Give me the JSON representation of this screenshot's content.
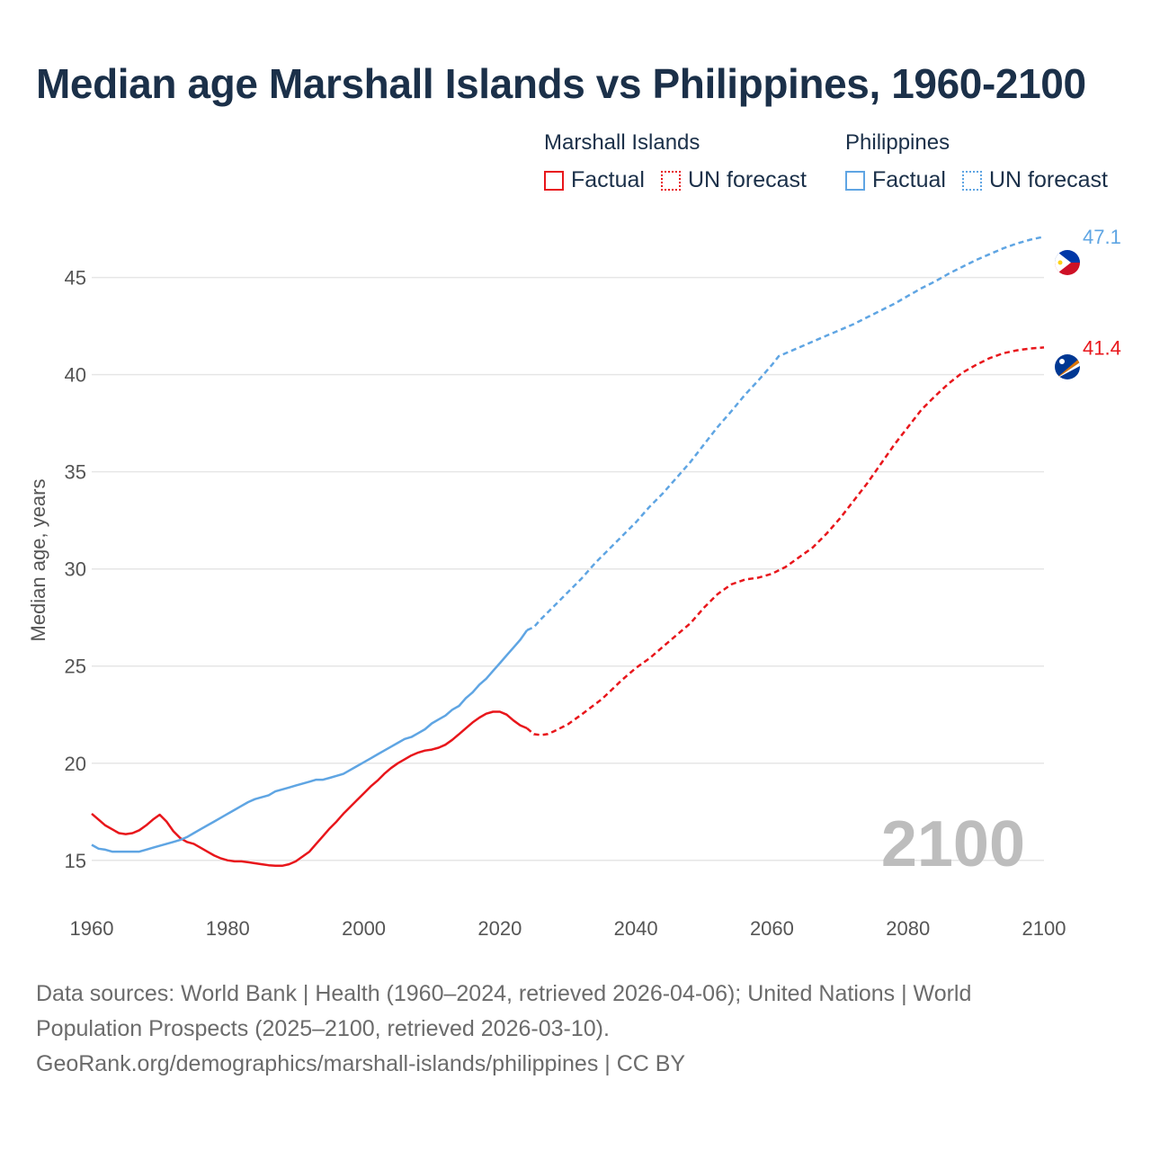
{
  "chart_data": {
    "type": "line",
    "title": "Median age Marshall Islands vs Philippines, 1960-2100",
    "ylabel": "Median age, years",
    "xlabel": "",
    "xlim": [
      1960,
      2100
    ],
    "ylim": [
      13,
      48.5
    ],
    "x_ticks": [
      1960,
      1980,
      2000,
      2020,
      2040,
      2060,
      2080,
      2100
    ],
    "y_ticks": [
      15,
      20,
      25,
      30,
      35,
      40,
      45
    ],
    "current_year_label": "2100",
    "legend": {
      "groups": [
        {
          "name": "Marshall Islands",
          "factual": "Factual",
          "forecast": "UN forecast",
          "color": "#e8161b"
        },
        {
          "name": "Philippines",
          "factual": "Factual",
          "forecast": "UN forecast",
          "color": "#5fa5e3"
        }
      ]
    },
    "series": [
      {
        "name": "Marshall Islands",
        "color": "#e8161b",
        "end_label": "41.4",
        "icon": "marshall-islands-flag-icon",
        "factual_points": [
          [
            1960,
            17.4
          ],
          [
            1961,
            17.1
          ],
          [
            1962,
            16.8
          ],
          [
            1963,
            16.6
          ],
          [
            1964,
            16.4
          ],
          [
            1965,
            16.35
          ],
          [
            1966,
            16.4
          ],
          [
            1967,
            16.55
          ],
          [
            1968,
            16.8
          ],
          [
            1969,
            17.1
          ],
          [
            1970,
            17.35
          ],
          [
            1971,
            17.0
          ],
          [
            1972,
            16.5
          ],
          [
            1973,
            16.15
          ],
          [
            1974,
            15.95
          ],
          [
            1975,
            15.85
          ],
          [
            1976,
            15.65
          ],
          [
            1977,
            15.45
          ],
          [
            1978,
            15.25
          ],
          [
            1979,
            15.1
          ],
          [
            1980,
            15.0
          ],
          [
            1981,
            14.95
          ],
          [
            1982,
            14.95
          ],
          [
            1983,
            14.9
          ],
          [
            1984,
            14.85
          ],
          [
            1985,
            14.8
          ],
          [
            1986,
            14.75
          ],
          [
            1987,
            14.72
          ],
          [
            1988,
            14.72
          ],
          [
            1989,
            14.8
          ],
          [
            1990,
            14.95
          ],
          [
            1991,
            15.2
          ],
          [
            1992,
            15.45
          ],
          [
            1993,
            15.85
          ],
          [
            1994,
            16.25
          ],
          [
            1995,
            16.65
          ],
          [
            1996,
            17.0
          ],
          [
            1997,
            17.4
          ],
          [
            1998,
            17.75
          ],
          [
            1999,
            18.1
          ],
          [
            2000,
            18.45
          ],
          [
            2001,
            18.8
          ],
          [
            2002,
            19.1
          ],
          [
            2003,
            19.45
          ],
          [
            2004,
            19.75
          ],
          [
            2005,
            20.0
          ],
          [
            2006,
            20.2
          ],
          [
            2007,
            20.4
          ],
          [
            2008,
            20.55
          ],
          [
            2009,
            20.65
          ],
          [
            2010,
            20.7
          ],
          [
            2011,
            20.8
          ],
          [
            2012,
            20.95
          ],
          [
            2013,
            21.2
          ],
          [
            2014,
            21.5
          ],
          [
            2015,
            21.8
          ],
          [
            2016,
            22.1
          ],
          [
            2017,
            22.35
          ],
          [
            2018,
            22.55
          ],
          [
            2019,
            22.65
          ],
          [
            2020,
            22.65
          ],
          [
            2021,
            22.5
          ],
          [
            2022,
            22.2
          ],
          [
            2023,
            21.95
          ],
          [
            2024,
            21.8
          ]
        ],
        "forecast_points": [
          [
            2024,
            21.8
          ],
          [
            2025,
            21.5
          ],
          [
            2026,
            21.45
          ],
          [
            2027,
            21.5
          ],
          [
            2028,
            21.65
          ],
          [
            2030,
            22.0
          ],
          [
            2032,
            22.5
          ],
          [
            2035,
            23.3
          ],
          [
            2038,
            24.3
          ],
          [
            2040,
            24.9
          ],
          [
            2042,
            25.4
          ],
          [
            2045,
            26.3
          ],
          [
            2048,
            27.2
          ],
          [
            2050,
            28.0
          ],
          [
            2052,
            28.7
          ],
          [
            2054,
            29.2
          ],
          [
            2056,
            29.45
          ],
          [
            2058,
            29.55
          ],
          [
            2060,
            29.75
          ],
          [
            2062,
            30.1
          ],
          [
            2064,
            30.6
          ],
          [
            2066,
            31.1
          ],
          [
            2068,
            31.8
          ],
          [
            2070,
            32.6
          ],
          [
            2072,
            33.5
          ],
          [
            2074,
            34.4
          ],
          [
            2076,
            35.4
          ],
          [
            2078,
            36.4
          ],
          [
            2080,
            37.3
          ],
          [
            2082,
            38.2
          ],
          [
            2084,
            38.9
          ],
          [
            2086,
            39.55
          ],
          [
            2088,
            40.1
          ],
          [
            2090,
            40.5
          ],
          [
            2092,
            40.85
          ],
          [
            2094,
            41.1
          ],
          [
            2096,
            41.25
          ],
          [
            2098,
            41.35
          ],
          [
            2100,
            41.4
          ]
        ]
      },
      {
        "name": "Philippines",
        "color": "#5fa5e3",
        "end_label": "47.1",
        "icon": "philippines-flag-icon",
        "factual_points": [
          [
            1960,
            15.8
          ],
          [
            1961,
            15.6
          ],
          [
            1962,
            15.55
          ],
          [
            1963,
            15.45
          ],
          [
            1964,
            15.45
          ],
          [
            1965,
            15.45
          ],
          [
            1966,
            15.45
          ],
          [
            1967,
            15.45
          ],
          [
            1968,
            15.55
          ],
          [
            1969,
            15.65
          ],
          [
            1970,
            15.75
          ],
          [
            1971,
            15.85
          ],
          [
            1972,
            15.95
          ],
          [
            1973,
            16.05
          ],
          [
            1974,
            16.2
          ],
          [
            1975,
            16.4
          ],
          [
            1976,
            16.6
          ],
          [
            1977,
            16.8
          ],
          [
            1978,
            17.0
          ],
          [
            1979,
            17.2
          ],
          [
            1980,
            17.4
          ],
          [
            1981,
            17.6
          ],
          [
            1982,
            17.8
          ],
          [
            1983,
            18.0
          ],
          [
            1984,
            18.15
          ],
          [
            1985,
            18.25
          ],
          [
            1986,
            18.35
          ],
          [
            1987,
            18.55
          ],
          [
            1988,
            18.65
          ],
          [
            1989,
            18.75
          ],
          [
            1990,
            18.85
          ],
          [
            1991,
            18.95
          ],
          [
            1992,
            19.05
          ],
          [
            1993,
            19.15
          ],
          [
            1994,
            19.15
          ],
          [
            1995,
            19.25
          ],
          [
            1996,
            19.35
          ],
          [
            1997,
            19.45
          ],
          [
            1998,
            19.65
          ],
          [
            1999,
            19.85
          ],
          [
            2000,
            20.05
          ],
          [
            2001,
            20.25
          ],
          [
            2002,
            20.45
          ],
          [
            2003,
            20.65
          ],
          [
            2004,
            20.85
          ],
          [
            2005,
            21.05
          ],
          [
            2006,
            21.25
          ],
          [
            2007,
            21.35
          ],
          [
            2008,
            21.55
          ],
          [
            2009,
            21.75
          ],
          [
            2010,
            22.05
          ],
          [
            2011,
            22.25
          ],
          [
            2012,
            22.45
          ],
          [
            2013,
            22.75
          ],
          [
            2014,
            22.95
          ],
          [
            2015,
            23.35
          ],
          [
            2016,
            23.65
          ],
          [
            2017,
            24.05
          ],
          [
            2018,
            24.35
          ],
          [
            2019,
            24.75
          ],
          [
            2020,
            25.15
          ],
          [
            2021,
            25.55
          ],
          [
            2022,
            25.95
          ],
          [
            2023,
            26.35
          ],
          [
            2024,
            26.85
          ]
        ],
        "forecast_points": [
          [
            2024,
            26.85
          ],
          [
            2025,
            27.0
          ],
          [
            2026,
            27.4
          ],
          [
            2028,
            28.1
          ],
          [
            2030,
            28.8
          ],
          [
            2032,
            29.5
          ],
          [
            2034,
            30.3
          ],
          [
            2036,
            31.0
          ],
          [
            2038,
            31.7
          ],
          [
            2040,
            32.4
          ],
          [
            2042,
            33.2
          ],
          [
            2044,
            33.9
          ],
          [
            2046,
            34.7
          ],
          [
            2048,
            35.5
          ],
          [
            2050,
            36.4
          ],
          [
            2052,
            37.3
          ],
          [
            2054,
            38.1
          ],
          [
            2056,
            38.95
          ],
          [
            2058,
            39.7
          ],
          [
            2060,
            40.5
          ],
          [
            2061,
            40.95
          ],
          [
            2062,
            41.1
          ],
          [
            2064,
            41.4
          ],
          [
            2066,
            41.7
          ],
          [
            2068,
            42.0
          ],
          [
            2070,
            42.3
          ],
          [
            2072,
            42.6
          ],
          [
            2074,
            42.95
          ],
          [
            2076,
            43.3
          ],
          [
            2078,
            43.65
          ],
          [
            2080,
            44.05
          ],
          [
            2082,
            44.45
          ],
          [
            2084,
            44.8
          ],
          [
            2086,
            45.2
          ],
          [
            2088,
            45.55
          ],
          [
            2090,
            45.9
          ],
          [
            2092,
            46.2
          ],
          [
            2094,
            46.5
          ],
          [
            2096,
            46.75
          ],
          [
            2098,
            46.95
          ],
          [
            2100,
            47.1
          ]
        ]
      }
    ]
  },
  "source": {
    "line1": "Data sources: World Bank | Health (1960–2024, retrieved 2026-04-06); United Nations | World",
    "line2": "Population Prospects (2025–2100, retrieved 2026-03-10).",
    "line3": "GeoRank.org/demographics/marshall-islands/philippines | CC BY"
  }
}
